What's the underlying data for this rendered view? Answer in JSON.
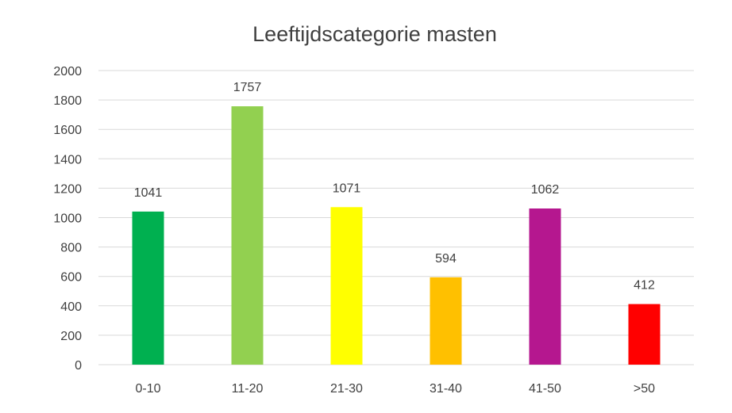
{
  "chart_data": {
    "type": "bar",
    "title": "Leeftijdscategorie masten",
    "xlabel": "",
    "ylabel": "",
    "categories": [
      "0-10",
      "11-20",
      "21-30",
      "31-40",
      "41-50",
      ">50"
    ],
    "values": [
      1041,
      1757,
      1071,
      594,
      1062,
      412
    ],
    "colors": [
      "#00b050",
      "#92d050",
      "#ffff00",
      "#ffc000",
      "#b5178f",
      "#ff0000"
    ],
    "ylim": [
      0,
      2000
    ],
    "yticks": [
      0,
      200,
      400,
      600,
      800,
      1000,
      1200,
      1400,
      1600,
      1800,
      2000
    ],
    "grid": true,
    "legend": "none",
    "data_labels": [
      "1041",
      "1757",
      "1071",
      "594",
      "1062",
      "412"
    ]
  }
}
